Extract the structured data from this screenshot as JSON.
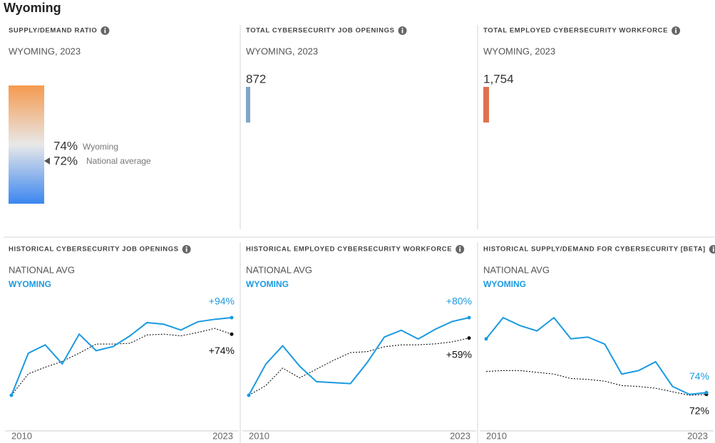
{
  "header": {
    "title": "Wyoming"
  },
  "summary": [
    {
      "title": "SUPPLY/DEMAND RATIO",
      "subtitle": "WYOMING, 2023",
      "items": [
        {
          "value": "74%",
          "label": "Wyoming"
        },
        {
          "value": "72%",
          "label": "National average"
        }
      ]
    },
    {
      "title": "TOTAL CYBERSECURITY JOB OPENINGS",
      "subtitle": "WYOMING, 2023",
      "value": "872"
    },
    {
      "title": "TOTAL EMPLOYED CYBERSECURITY WORKFORCE",
      "subtitle": "WYOMING, 2023",
      "value": "1,754"
    }
  ],
  "chart_data": [
    {
      "type": "line",
      "title": "HISTORICAL CYBERSECURITY JOB OPENINGS",
      "x": [
        2010,
        2011,
        2012,
        2013,
        2014,
        2015,
        2016,
        2017,
        2018,
        2019,
        2020,
        2021,
        2022,
        2023
      ],
      "xlim": [
        2010,
        2023
      ],
      "xticks": [
        2010,
        2023
      ],
      "series": [
        {
          "name": "NATIONAL AVG",
          "color": "#111111",
          "style": "dotted",
          "values": [
            0,
            26,
            34,
            41,
            51,
            62,
            62,
            63,
            73,
            74,
            72,
            76,
            81,
            74
          ],
          "value_labels": [
            null,
            null,
            null,
            null,
            null,
            null,
            null,
            null,
            null,
            null,
            null,
            null,
            null,
            "+74%"
          ]
        },
        {
          "name": "WYOMING",
          "color": "#1a9ae0",
          "style": "solid",
          "values": [
            0,
            51,
            61,
            38,
            74,
            54,
            59,
            72,
            88,
            86,
            79,
            89,
            92,
            94
          ],
          "value_labels": [
            null,
            null,
            null,
            null,
            null,
            null,
            null,
            null,
            null,
            null,
            null,
            null,
            null,
            "+94%"
          ]
        }
      ]
    },
    {
      "type": "line",
      "title": "HISTORICAL EMPLOYED CYBERSECURITY WORKFORCE",
      "x": [
        2010,
        2011,
        2012,
        2013,
        2014,
        2015,
        2016,
        2017,
        2018,
        2019,
        2020,
        2021,
        2022,
        2023
      ],
      "xlim": [
        2010,
        2023
      ],
      "xticks": [
        2010,
        2023
      ],
      "series": [
        {
          "name": "NATIONAL AVG",
          "color": "#111111",
          "style": "dotted",
          "values": [
            0,
            10,
            28,
            18,
            27,
            36,
            44,
            45,
            50,
            52,
            52,
            53,
            55,
            59
          ],
          "value_labels": [
            null,
            null,
            null,
            null,
            null,
            null,
            null,
            null,
            null,
            null,
            null,
            null,
            null,
            "+59%"
          ]
        },
        {
          "name": "WYOMING",
          "color": "#1a9ae0",
          "style": "solid",
          "values": [
            0,
            32,
            51,
            30,
            14,
            13,
            12,
            34,
            60,
            67,
            58,
            68,
            76,
            80
          ],
          "value_labels": [
            null,
            null,
            null,
            null,
            null,
            null,
            null,
            null,
            null,
            null,
            null,
            null,
            null,
            "+80%"
          ]
        }
      ]
    },
    {
      "type": "line",
      "title": "HISTORICAL SUPPLY/DEMAND FOR CYBERSECURITY [BETA]",
      "x": [
        2010,
        2011,
        2012,
        2013,
        2014,
        2015,
        2016,
        2017,
        2018,
        2019,
        2020,
        2021,
        2022,
        2023
      ],
      "xlim": [
        2010,
        2023
      ],
      "xticks": [
        2010,
        2023
      ],
      "series": [
        {
          "name": "NATIONAL AVG",
          "color": "#111111",
          "style": "dotted",
          "values": [
            98,
            99,
            99,
            97,
            95,
            90,
            89,
            87,
            82,
            81,
            79,
            75,
            71,
            72
          ],
          "value_labels": [
            null,
            null,
            null,
            null,
            null,
            null,
            null,
            null,
            null,
            null,
            null,
            null,
            null,
            "72%"
          ]
        },
        {
          "name": "WYOMING",
          "color": "#1a9ae0",
          "style": "solid",
          "values": [
            135,
            159,
            150,
            144,
            159,
            135,
            137,
            129,
            95,
            99,
            109,
            81,
            72,
            74
          ],
          "value_labels": [
            null,
            null,
            null,
            null,
            null,
            null,
            null,
            null,
            null,
            null,
            null,
            null,
            null,
            "74%"
          ]
        }
      ]
    }
  ]
}
